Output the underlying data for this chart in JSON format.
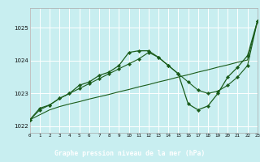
{
  "title": "Graphe pression niveau de la mer (hPa)",
  "plot_bg": "#c8eef0",
  "fig_bg": "#c8eef0",
  "label_bar_color": "#1a5c1a",
  "grid_color": "#ffffff",
  "line_color_dark": "#1a5c1a",
  "line_color_mid": "#2a7a2a",
  "xlim": [
    0,
    23
  ],
  "ylim": [
    1021.8,
    1025.6
  ],
  "yticks": [
    1022,
    1023,
    1024,
    1025
  ],
  "xticks": [
    0,
    1,
    2,
    3,
    4,
    5,
    6,
    7,
    8,
    9,
    10,
    11,
    12,
    13,
    14,
    15,
    16,
    17,
    18,
    19,
    20,
    21,
    22,
    23
  ],
  "hours": [
    0,
    1,
    2,
    3,
    4,
    5,
    6,
    7,
    8,
    9,
    10,
    11,
    12,
    13,
    14,
    15,
    16,
    17,
    18,
    19,
    20,
    21,
    22,
    23
  ],
  "line_straight": [
    1022.2,
    1022.35,
    1022.5,
    1022.6,
    1022.68,
    1022.75,
    1022.83,
    1022.9,
    1022.97,
    1023.05,
    1023.12,
    1023.2,
    1023.27,
    1023.35,
    1023.42,
    1023.5,
    1023.57,
    1023.65,
    1023.72,
    1023.8,
    1023.87,
    1023.95,
    1024.02,
    1025.2
  ],
  "line_wavy": [
    1022.2,
    1022.55,
    1022.65,
    1022.85,
    1023.0,
    1023.25,
    1023.35,
    1023.55,
    1023.65,
    1023.85,
    1024.25,
    1024.3,
    1024.3,
    1024.1,
    1023.85,
    1023.6,
    1022.68,
    1022.5,
    1022.62,
    1023.0,
    1023.5,
    1023.8,
    1024.15,
    1025.2
  ],
  "line_mid": [
    1022.2,
    1022.5,
    1022.65,
    1022.85,
    1023.0,
    1023.15,
    1023.3,
    1023.45,
    1023.6,
    1023.75,
    1023.9,
    1024.05,
    1024.25,
    1024.1,
    1023.85,
    1023.6,
    1023.35,
    1023.1,
    1023.0,
    1023.07,
    1023.25,
    1023.5,
    1023.85,
    1025.2
  ]
}
